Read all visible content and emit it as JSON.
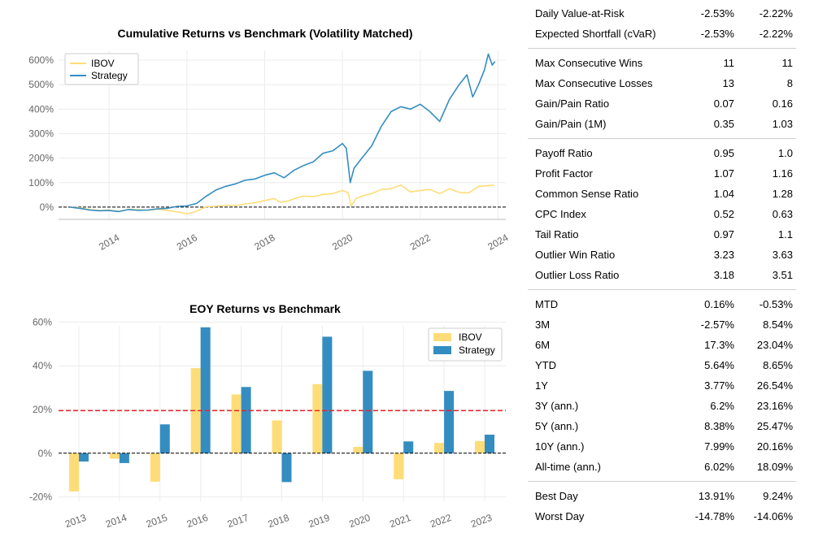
{
  "chart_data": [
    {
      "type": "line",
      "title": "Cumulative Returns vs Benchmark (Volatility Matched)",
      "x_ticks": [
        "2014",
        "2016",
        "2018",
        "2020",
        "2022",
        "2024"
      ],
      "y_ticks": [
        "0%",
        "100%",
        "200%",
        "300%",
        "400%",
        "500%",
        "600%"
      ],
      "ylim": [
        -50,
        640
      ],
      "xlim": [
        2012.7,
        2024.2
      ],
      "grid": true,
      "legend": "top-left",
      "baseline": 0,
      "series": [
        {
          "name": "IBOV",
          "color": "#fedd78",
          "points": [
            [
              2013.0,
              0
            ],
            [
              2013.25,
              -3
            ],
            [
              2013.5,
              -10
            ],
            [
              2013.75,
              -14
            ],
            [
              2014.0,
              -12
            ],
            [
              2014.25,
              -17
            ],
            [
              2014.5,
              -9
            ],
            [
              2014.75,
              -11
            ],
            [
              2015.0,
              -13
            ],
            [
              2015.25,
              -8
            ],
            [
              2015.5,
              -14
            ],
            [
              2015.75,
              -19
            ],
            [
              2016.0,
              -27
            ],
            [
              2016.1,
              -24
            ],
            [
              2016.25,
              -16
            ],
            [
              2016.5,
              2
            ],
            [
              2016.75,
              3
            ],
            [
              2017.0,
              8
            ],
            [
              2017.25,
              6
            ],
            [
              2017.5,
              13
            ],
            [
              2017.75,
              18
            ],
            [
              2018.0,
              27
            ],
            [
              2018.25,
              35
            ],
            [
              2018.4,
              20
            ],
            [
              2018.6,
              25
            ],
            [
              2018.8,
              37
            ],
            [
              2019.0,
              45
            ],
            [
              2019.25,
              43
            ],
            [
              2019.5,
              52
            ],
            [
              2019.75,
              55
            ],
            [
              2020.0,
              68
            ],
            [
              2020.15,
              58
            ],
            [
              2020.22,
              5
            ],
            [
              2020.35,
              35
            ],
            [
              2020.5,
              45
            ],
            [
              2020.75,
              55
            ],
            [
              2021.0,
              72
            ],
            [
              2021.25,
              75
            ],
            [
              2021.5,
              90
            ],
            [
              2021.75,
              62
            ],
            [
              2022.0,
              68
            ],
            [
              2022.25,
              72
            ],
            [
              2022.5,
              55
            ],
            [
              2022.75,
              75
            ],
            [
              2023.0,
              60
            ],
            [
              2023.25,
              58
            ],
            [
              2023.5,
              85
            ],
            [
              2023.75,
              88
            ],
            [
              2023.9,
              90
            ]
          ]
        },
        {
          "name": "Strategy",
          "color": "#348dc1",
          "points": [
            [
              2013.0,
              0
            ],
            [
              2013.25,
              -5
            ],
            [
              2013.5,
              -12
            ],
            [
              2013.75,
              -15
            ],
            [
              2014.0,
              -14
            ],
            [
              2014.25,
              -18
            ],
            [
              2014.5,
              -10
            ],
            [
              2014.75,
              -13
            ],
            [
              2015.0,
              -12
            ],
            [
              2015.25,
              -7
            ],
            [
              2015.5,
              -5
            ],
            [
              2015.75,
              3
            ],
            [
              2016.0,
              5
            ],
            [
              2016.25,
              15
            ],
            [
              2016.5,
              45
            ],
            [
              2016.75,
              70
            ],
            [
              2017.0,
              85
            ],
            [
              2017.25,
              95
            ],
            [
              2017.5,
              110
            ],
            [
              2017.75,
              115
            ],
            [
              2018.0,
              130
            ],
            [
              2018.25,
              140
            ],
            [
              2018.5,
              120
            ],
            [
              2018.75,
              150
            ],
            [
              2019.0,
              170
            ],
            [
              2019.25,
              185
            ],
            [
              2019.5,
              220
            ],
            [
              2019.75,
              230
            ],
            [
              2020.0,
              260
            ],
            [
              2020.1,
              240
            ],
            [
              2020.2,
              100
            ],
            [
              2020.3,
              160
            ],
            [
              2020.5,
              200
            ],
            [
              2020.75,
              250
            ],
            [
              2021.0,
              330
            ],
            [
              2021.25,
              390
            ],
            [
              2021.5,
              410
            ],
            [
              2021.75,
              400
            ],
            [
              2022.0,
              420
            ],
            [
              2022.25,
              390
            ],
            [
              2022.5,
              350
            ],
            [
              2022.75,
              440
            ],
            [
              2023.0,
              500
            ],
            [
              2023.2,
              540
            ],
            [
              2023.35,
              450
            ],
            [
              2023.5,
              500
            ],
            [
              2023.65,
              560
            ],
            [
              2023.75,
              625
            ],
            [
              2023.85,
              580
            ],
            [
              2023.92,
              595
            ]
          ]
        }
      ]
    },
    {
      "type": "bar",
      "title": "EOY Returns  vs Benchmark",
      "categories": [
        "2013",
        "2014",
        "2015",
        "2016",
        "2017",
        "2018",
        "2019",
        "2020",
        "2021",
        "2022",
        "2023"
      ],
      "y_ticks": [
        "-20%",
        "0%",
        "20%",
        "40%",
        "60%"
      ],
      "ylim": [
        -22,
        62
      ],
      "grid": true,
      "legend": "top-right",
      "reference_line": 19.5,
      "series": [
        {
          "name": "IBOV",
          "color": "#fedd78",
          "values": [
            -17.5,
            -2.5,
            -13,
            38.9,
            26.9,
            15,
            31.6,
            2.9,
            -11.9,
            4.7,
            5.6
          ]
        },
        {
          "name": "Strategy",
          "color": "#348dc1",
          "values": [
            -3.8,
            -4.5,
            13.2,
            57.6,
            30.3,
            -13.2,
            53.3,
            37.7,
            5.4,
            28.5,
            8.5
          ]
        }
      ]
    }
  ],
  "metrics": [
    [
      {
        "label": "Daily Value-at-Risk",
        "strategy": "-2.53%",
        "benchmark": "-2.22%"
      },
      {
        "label": "Expected Shortfall (cVaR)",
        "strategy": "-2.53%",
        "benchmark": "-2.22%"
      }
    ],
    [
      {
        "label": "Max Consecutive Wins",
        "strategy": "11",
        "benchmark": "11"
      },
      {
        "label": "Max Consecutive Losses",
        "strategy": "13",
        "benchmark": "8"
      },
      {
        "label": "Gain/Pain Ratio",
        "strategy": "0.07",
        "benchmark": "0.16"
      },
      {
        "label": "Gain/Pain (1M)",
        "strategy": "0.35",
        "benchmark": "1.03"
      }
    ],
    [
      {
        "label": "Payoff Ratio",
        "strategy": "0.95",
        "benchmark": "1.0"
      },
      {
        "label": "Profit Factor",
        "strategy": "1.07",
        "benchmark": "1.16"
      },
      {
        "label": "Common Sense Ratio",
        "strategy": "1.04",
        "benchmark": "1.28"
      },
      {
        "label": "CPC Index",
        "strategy": "0.52",
        "benchmark": "0.63"
      },
      {
        "label": "Tail Ratio",
        "strategy": "0.97",
        "benchmark": "1.1"
      },
      {
        "label": "Outlier Win Ratio",
        "strategy": "3.23",
        "benchmark": "3.63"
      },
      {
        "label": "Outlier Loss Ratio",
        "strategy": "3.18",
        "benchmark": "3.51"
      }
    ],
    [
      {
        "label": "MTD",
        "strategy": "0.16%",
        "benchmark": "-0.53%"
      },
      {
        "label": "3M",
        "strategy": "-2.57%",
        "benchmark": "8.54%"
      },
      {
        "label": "6M",
        "strategy": "17.3%",
        "benchmark": "23.04%"
      },
      {
        "label": "YTD",
        "strategy": "5.64%",
        "benchmark": "8.65%"
      },
      {
        "label": "1Y",
        "strategy": "3.77%",
        "benchmark": "26.54%"
      },
      {
        "label": "3Y (ann.)",
        "strategy": "6.2%",
        "benchmark": "23.16%"
      },
      {
        "label": "5Y (ann.)",
        "strategy": "8.38%",
        "benchmark": "25.47%"
      },
      {
        "label": "10Y (ann.)",
        "strategy": "7.99%",
        "benchmark": "20.16%"
      },
      {
        "label": "All-time (ann.)",
        "strategy": "6.02%",
        "benchmark": "18.09%"
      }
    ],
    [
      {
        "label": "Best Day",
        "strategy": "13.91%",
        "benchmark": "9.24%"
      },
      {
        "label": "Worst Day",
        "strategy": "-14.78%",
        "benchmark": "-14.06%"
      }
    ]
  ]
}
